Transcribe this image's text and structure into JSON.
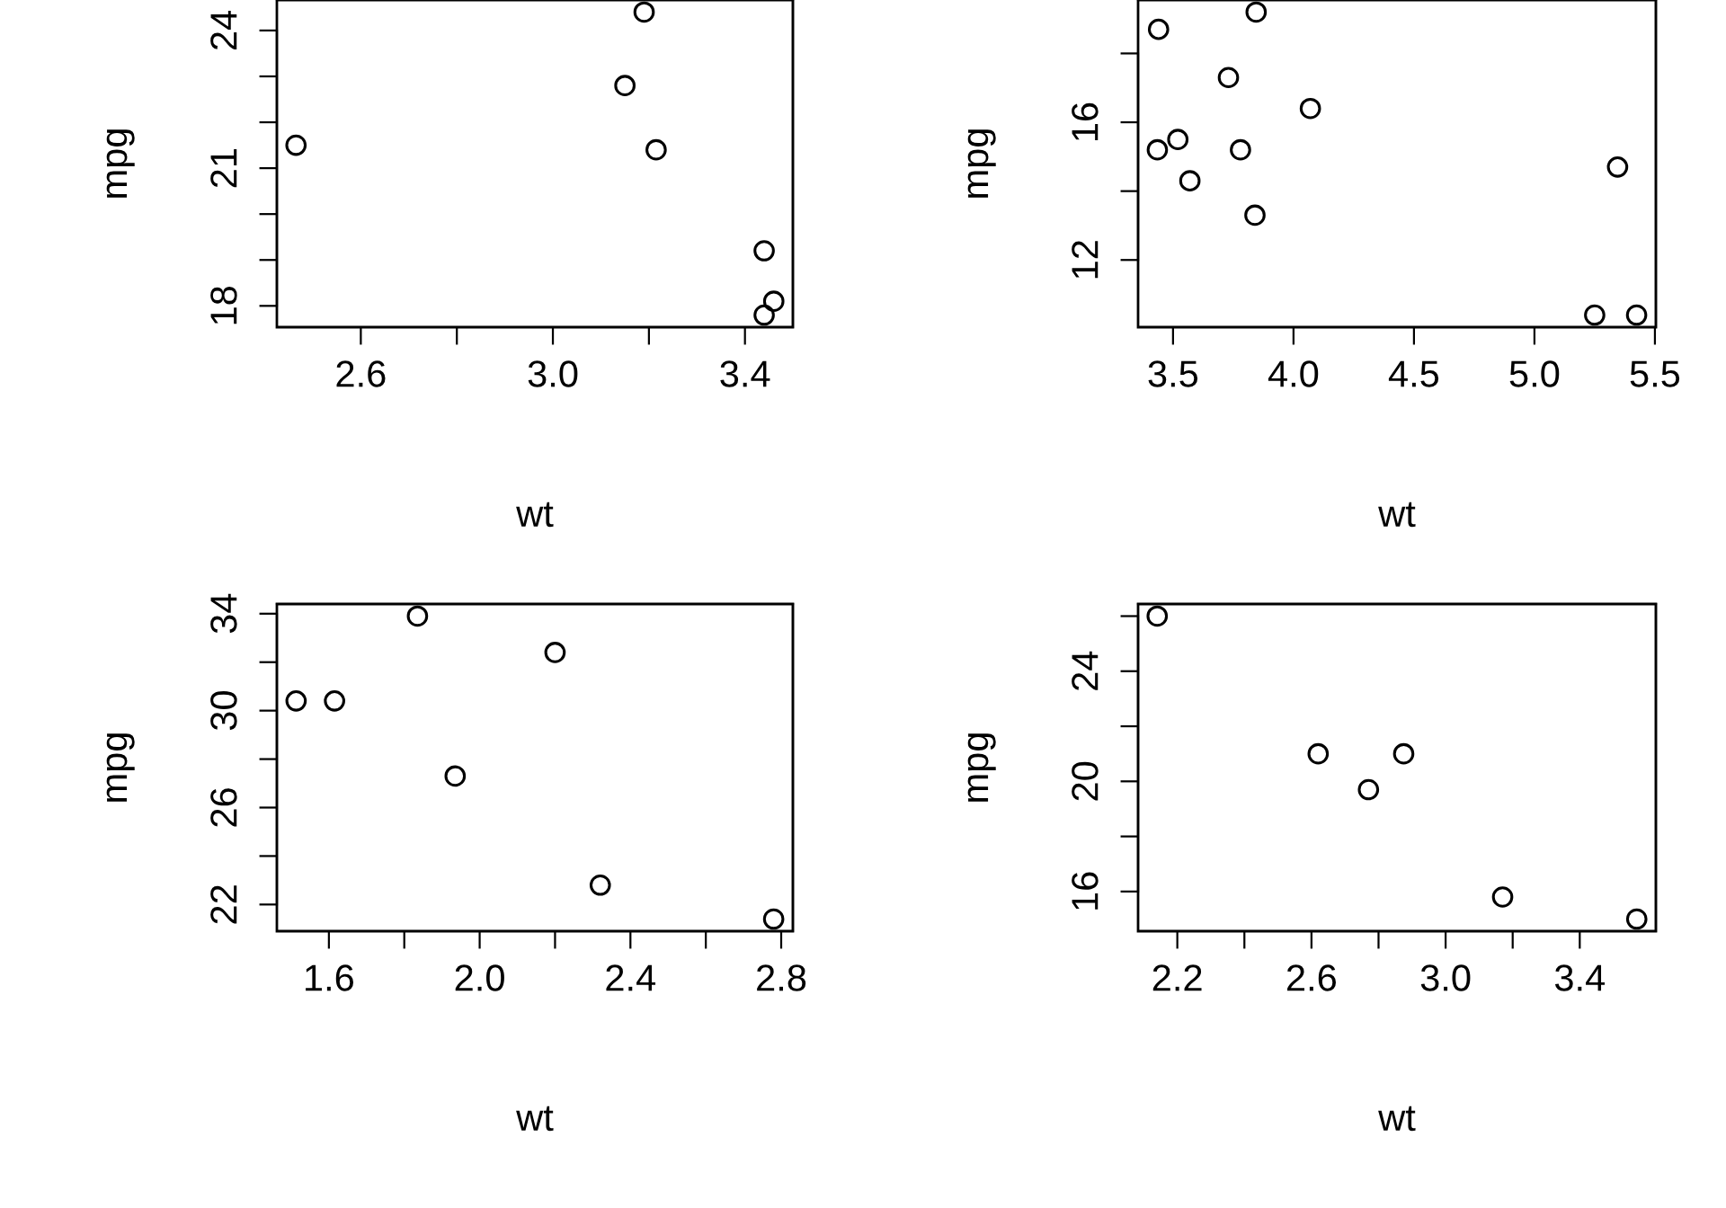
{
  "chart_data": [
    {
      "type": "scatter",
      "xlabel": "wt",
      "ylabel": "mpg",
      "marker": "circle",
      "grid": false,
      "xlim": [
        2.4252,
        3.4998
      ],
      "ylim": [
        17.536,
        24.664
      ],
      "xticks": [
        2.6,
        {
          "value": 2.8,
          "label": null
        },
        {
          "value": 3.0,
          "label": "3.0"
        },
        {
          "value": 3.2,
          "label": null
        },
        3.4
      ],
      "yticks": [
        18,
        {
          "value": 19,
          "label": null
        },
        {
          "value": 20,
          "label": null
        },
        21,
        {
          "value": 22,
          "label": null
        },
        {
          "value": 23,
          "label": null
        },
        24
      ],
      "series": [
        {
          "color": "#000000",
          "x": [
            3.215,
            3.46,
            3.19,
            3.15,
            3.44,
            3.44,
            2.465
          ],
          "values": [
            21.4,
            18.1,
            24.4,
            22.8,
            19.2,
            17.8,
            21.5
          ]
        }
      ]
    },
    {
      "type": "scatter",
      "xlabel": "wt",
      "ylabel": "mpg",
      "marker": "circle",
      "grid": false,
      "xlim": [
        3.355,
        5.504
      ],
      "ylim": [
        10.048,
        19.552
      ],
      "xticks": [
        3.5,
        {
          "value": 4.0,
          "label": "4.0"
        },
        4.5,
        {
          "value": 5.0,
          "label": "5.0"
        },
        5.5
      ],
      "yticks": [
        12,
        {
          "value": 14,
          "label": null
        },
        16,
        {
          "value": 18,
          "label": null
        }
      ],
      "series": [
        {
          "color": "#000000",
          "x": [
            3.44,
            3.57,
            4.07,
            3.73,
            3.78,
            5.25,
            5.424,
            5.345,
            3.52,
            3.435,
            3.84,
            3.845
          ],
          "values": [
            18.7,
            14.3,
            16.4,
            17.3,
            15.2,
            10.4,
            10.4,
            14.7,
            15.5,
            15.2,
            13.3,
            19.2
          ]
        }
      ]
    },
    {
      "type": "scatter",
      "xlabel": "wt",
      "ylabel": "mpg",
      "marker": "circle",
      "grid": false,
      "xlim": [
        1.462,
        2.831
      ],
      "ylim": [
        20.9,
        34.4
      ],
      "xticks": [
        1.6,
        {
          "value": 1.8,
          "label": null
        },
        {
          "value": 2.0,
          "label": "2.0"
        },
        {
          "value": 2.2,
          "label": null
        },
        2.4,
        {
          "value": 2.6,
          "label": null
        },
        2.8
      ],
      "yticks": [
        22,
        {
          "value": 24,
          "label": null
        },
        26,
        {
          "value": 28,
          "label": null
        },
        30,
        {
          "value": 32,
          "label": null
        },
        34
      ],
      "series": [
        {
          "color": "#000000",
          "x": [
            2.32,
            2.2,
            1.615,
            1.835,
            1.935,
            1.513,
            2.78
          ],
          "values": [
            22.8,
            32.4,
            30.4,
            33.9,
            27.3,
            30.4,
            21.4
          ]
        }
      ]
    },
    {
      "type": "scatter",
      "xlabel": "wt",
      "ylabel": "mpg",
      "marker": "circle",
      "grid": false,
      "xlim": [
        2.083,
        3.627
      ],
      "ylim": [
        14.56,
        26.44
      ],
      "xticks": [
        2.2,
        {
          "value": 2.4,
          "label": null
        },
        2.6,
        {
          "value": 2.8,
          "label": null
        },
        {
          "value": 3.0,
          "label": "3.0"
        },
        {
          "value": 3.2,
          "label": null
        },
        3.4
      ],
      "yticks": [
        16,
        {
          "value": 18,
          "label": null
        },
        20,
        {
          "value": 22,
          "label": null
        },
        24,
        {
          "value": 26,
          "label": null
        }
      ],
      "series": [
        {
          "color": "#000000",
          "x": [
            2.62,
            2.875,
            2.14,
            3.17,
            2.77,
            3.57
          ],
          "values": [
            21.0,
            21.0,
            26.0,
            15.8,
            19.7,
            15.0
          ]
        }
      ]
    }
  ]
}
